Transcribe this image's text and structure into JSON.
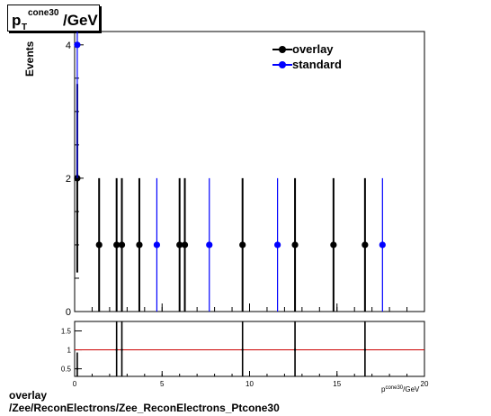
{
  "title": {
    "p": "p",
    "sub": "T",
    "sup": "cone30",
    "rest": "/GeV"
  },
  "caption": {
    "line1": "overlay",
    "line2": "/Zee/ReconElectrons/Zee_ReconElectrons_Ptcone30"
  },
  "colors": {
    "overlay": "#000000",
    "standard": "#0000ff",
    "ratio_line": "#cc0000"
  },
  "chart_data": [
    {
      "type": "scatter",
      "ylabel": "Events",
      "xlim": [
        0,
        20
      ],
      "ylim": [
        0,
        4.2
      ],
      "x_ticks": [
        "0",
        "5",
        "10",
        "15",
        "20"
      ],
      "y_ticks": [
        "0",
        "2",
        "4"
      ],
      "legend_placement": "top-right",
      "series": [
        {
          "name": "overlay",
          "color": "#000000",
          "points": [
            {
              "x": 0.15,
              "y": 2,
              "err": 1.414
            },
            {
              "x": 1.4,
              "y": 1,
              "err": 1.0
            },
            {
              "x": 2.4,
              "y": 1,
              "err": 1.0
            },
            {
              "x": 2.7,
              "y": 1,
              "err": 1.0
            },
            {
              "x": 3.7,
              "y": 1,
              "err": 1.0
            },
            {
              "x": 6.0,
              "y": 1,
              "err": 1.0
            },
            {
              "x": 6.3,
              "y": 1,
              "err": 1.0
            },
            {
              "x": 9.6,
              "y": 1,
              "err": 1.0
            },
            {
              "x": 12.6,
              "y": 1,
              "err": 1.0
            },
            {
              "x": 14.8,
              "y": 1,
              "err": 1.0
            },
            {
              "x": 16.6,
              "y": 1,
              "err": 1.0
            }
          ]
        },
        {
          "name": "standard",
          "color": "#0000ff",
          "points": [
            {
              "x": 0.15,
              "y": 4,
              "err": 2.0
            },
            {
              "x": 4.7,
              "y": 1,
              "err": 1.0
            },
            {
              "x": 7.7,
              "y": 1,
              "err": 1.0
            },
            {
              "x": 11.6,
              "y": 1,
              "err": 1.0
            },
            {
              "x": 17.6,
              "y": 1,
              "err": 1.0
            }
          ]
        }
      ]
    },
    {
      "type": "scatter",
      "xlim": [
        0,
        20
      ],
      "ylim": [
        0.3,
        1.75
      ],
      "x_ticks": [
        "0",
        "5",
        "10",
        "15",
        "20"
      ],
      "y_ticks": [
        "0.5",
        "1",
        "1.5"
      ],
      "x_axis_label": "p_T^cone30/GeV",
      "reference_line": 1,
      "points": [
        {
          "x": 0.15,
          "y": 0.5,
          "err": 0.43
        },
        {
          "x": 2.4,
          "y": 1.0,
          "err": 1.2
        },
        {
          "x": 2.7,
          "y": 1.0,
          "err": 1.2
        },
        {
          "x": 9.6,
          "y": 1.0,
          "err": 1.2
        },
        {
          "x": 12.6,
          "y": 1.0,
          "err": 1.2
        },
        {
          "x": 16.6,
          "y": 1.0,
          "err": 1.2
        }
      ]
    }
  ]
}
